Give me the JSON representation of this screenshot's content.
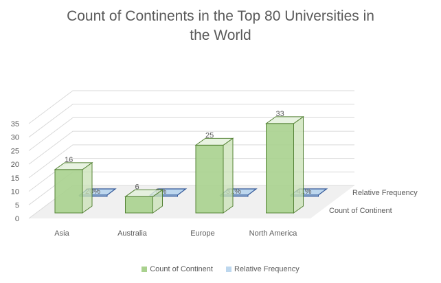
{
  "chart_data": {
    "type": "bar",
    "title_lines": [
      "Count of Continents in the Top 80 Universities in",
      "the World"
    ],
    "categories": [
      "Asia",
      "Australia",
      "Europe",
      "North America"
    ],
    "series": [
      {
        "name": "Count of Continent",
        "values": [
          16,
          6,
          25,
          33
        ],
        "labels": [
          "16",
          "6",
          "25",
          "33"
        ],
        "color": "#a9d18e",
        "edge": "#548235"
      },
      {
        "name": "Relative Frequency",
        "values": [
          0.2,
          0.08,
          0.31,
          0.41
        ],
        "labels": [
          "20%",
          "8%",
          "31%",
          "41%"
        ],
        "color": "#bdd7ee",
        "edge": "#2f5597"
      }
    ],
    "yticks": [
      "0",
      "5",
      "10",
      "15",
      "20",
      "25",
      "30",
      "35"
    ],
    "ylim": [
      0,
      35
    ],
    "grid": true,
    "legend": "bottom",
    "depth_labels": [
      "Relative Frequency",
      "Count of Continent"
    ]
  }
}
